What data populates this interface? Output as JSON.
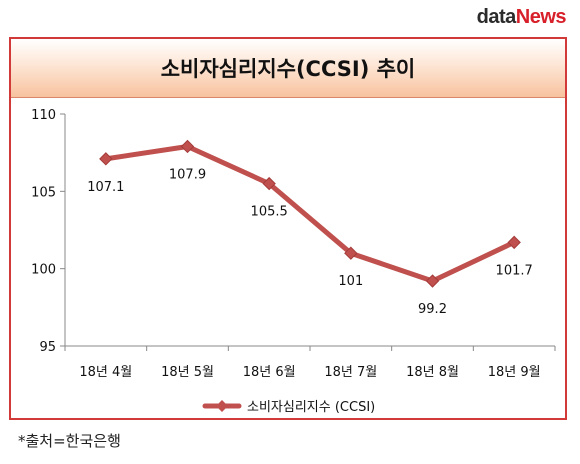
{
  "logo": {
    "part1": "data",
    "part2": "News"
  },
  "source_note": "*출처=한국은행",
  "colors": {
    "line": "#c0504d",
    "frame": "#d23a3a"
  },
  "chart_data": {
    "type": "line",
    "title": "소비자심리지수(CCSI) 추이",
    "categories": [
      "18년 4월",
      "18년 5월",
      "18년 6월",
      "18년 7월",
      "18년 8월",
      "18년 9월"
    ],
    "series": [
      {
        "name": "소비자심리지수 (CCSI)",
        "values": [
          107.1,
          107.9,
          105.5,
          101,
          99.2,
          101.7
        ],
        "labels": [
          "107.1",
          "107.9",
          "105.5",
          "101",
          "99.2",
          "101.7"
        ]
      }
    ],
    "yticks": [
      95,
      100,
      105,
      110
    ],
    "ylim": [
      95,
      110
    ],
    "xlabel": "",
    "ylabel": "",
    "grid": false,
    "legend": "bottom"
  }
}
